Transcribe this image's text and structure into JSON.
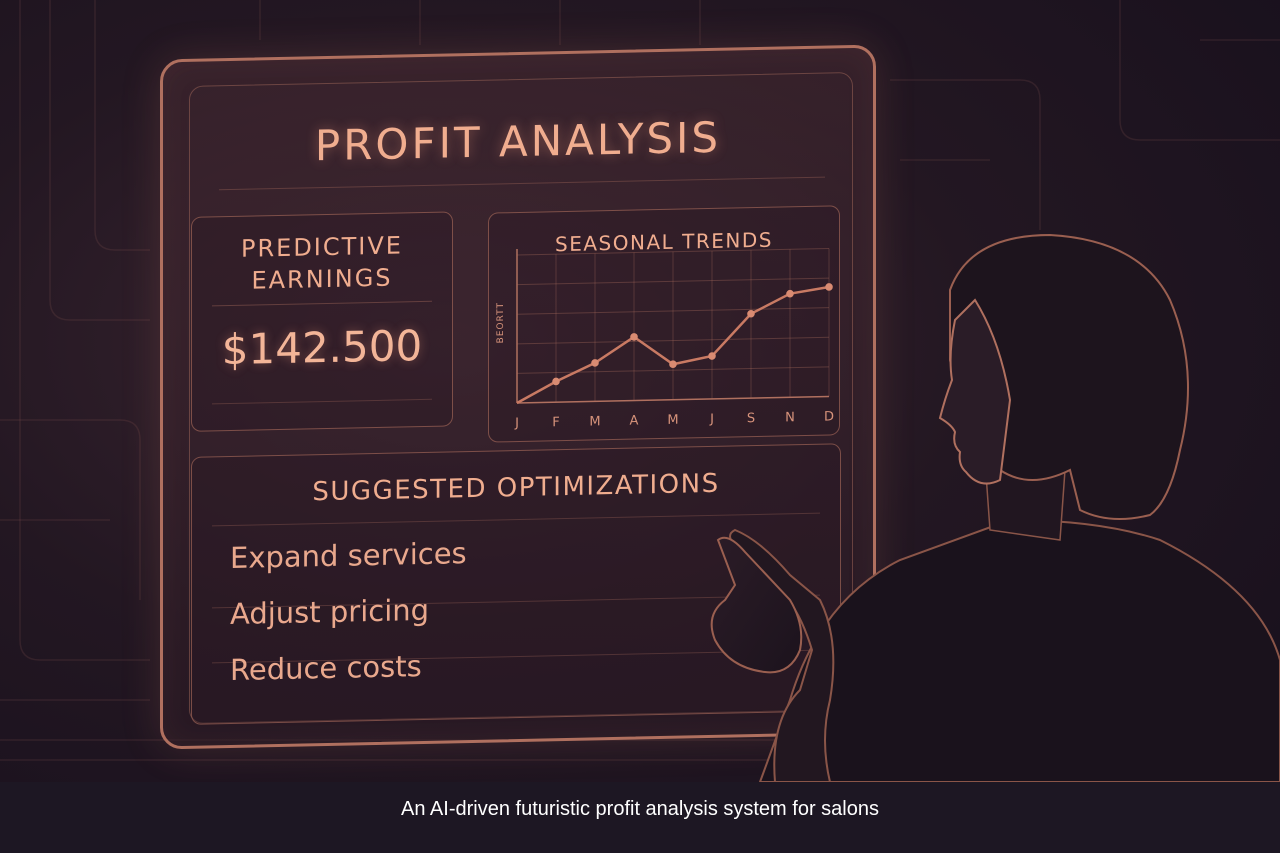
{
  "panel": {
    "title": "PROFIT ANALYSIS"
  },
  "earnings": {
    "title_line1": "PREDICTIVE",
    "title_line2": "EARNINGS",
    "value": "$142.500"
  },
  "trends": {
    "title": "SEASONAL TRENDS",
    "y_axis_label": "BEORTT"
  },
  "chart_data": {
    "type": "line",
    "title": "SEASONAL TRENDS",
    "ylabel": "BEORTT",
    "categories": [
      "J",
      "F",
      "M",
      "A",
      "M",
      "J",
      "S",
      "N",
      "D"
    ],
    "values": [
      0,
      14,
      26,
      43,
      24,
      29,
      57,
      70,
      74
    ],
    "ylim": [
      0,
      100
    ],
    "grid": true
  },
  "optimizations": {
    "title": "SUGGESTED OPTIMIZATIONS",
    "items": [
      "Expand services",
      "Adjust pricing",
      "Reduce costs"
    ]
  },
  "caption": "An AI-driven futuristic profit analysis system for salons",
  "colors": {
    "accent": "#f0ad8f",
    "line": "#c97a63",
    "background": "#231722"
  }
}
